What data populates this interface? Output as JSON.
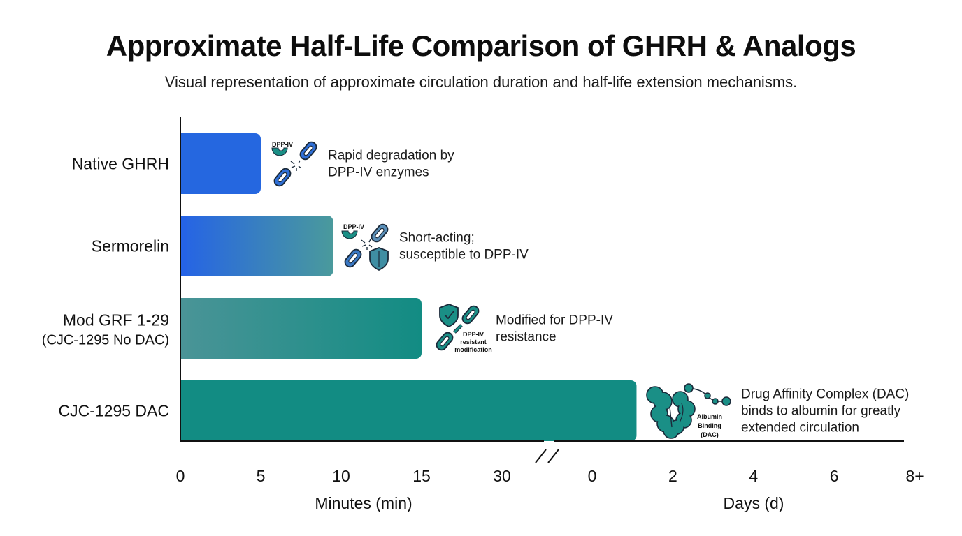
{
  "chart_data": {
    "type": "bar",
    "orientation": "horizontal",
    "title": "Approximate Half-Life Comparison of GHRH & Analogs",
    "subtitle": "Visual representation of approximate circulation duration and half-life extension mechanisms.",
    "categories": [
      {
        "label": "Native GHRH",
        "sublabel": ""
      },
      {
        "label": "Sermorelin",
        "sublabel": ""
      },
      {
        "label": "Mod GRF 1-29",
        "sublabel": "(CJC-1295 No DAC)"
      },
      {
        "label": "CJC-1295 DAC",
        "sublabel": ""
      }
    ],
    "series": [
      {
        "name": "Approximate half-life",
        "values": [
          {
            "value": 5,
            "unit": "min",
            "scale": "minutes"
          },
          {
            "value": 9.5,
            "unit": "min",
            "scale": "minutes"
          },
          {
            "value": 15,
            "unit": "min",
            "scale": "minutes"
          },
          {
            "value": 1.1,
            "unit": "d",
            "scale": "days"
          }
        ]
      }
    ],
    "bar_colors": [
      {
        "from": "#2567e0",
        "to": "#2567e0"
      },
      {
        "from": "#2563e6",
        "to": "#4a9a9c"
      },
      {
        "from": "#4a9497",
        "to": "#128c83"
      },
      {
        "from": "#128c83",
        "to": "#128c83"
      }
    ],
    "annotations": [
      {
        "icon": "broken-chain-icon",
        "icon_label": "DPP-IV",
        "lines": [
          "Rapid degradation by",
          "DPP-IV enzymes"
        ]
      },
      {
        "icon": "broken-chain-shield-icon",
        "icon_label": "DPP-IV",
        "lines": [
          "Short-acting;",
          "susceptible to DPP-IV"
        ]
      },
      {
        "icon": "shield-check-chain-icon",
        "icon_label": [
          "DPP-IV",
          "resistant",
          "modification"
        ],
        "lines": [
          "Modified for DPP-IV",
          "resistance"
        ]
      },
      {
        "icon": "albumin-binding-icon",
        "icon_label": [
          "Albumin",
          "Binding",
          "(DAC)"
        ],
        "lines": [
          "Drug Affinity Complex (DAC)",
          "binds to albumin for greatly",
          "extended circulation"
        ]
      }
    ],
    "x_axes": [
      {
        "name": "minutes",
        "xlabel": "Minutes (min)",
        "ticks": [
          "0",
          "5",
          "10",
          "15",
          "30"
        ],
        "tick_values": [
          0,
          5,
          10,
          15,
          20
        ]
      },
      {
        "name": "days",
        "xlabel": "Days (d)",
        "ticks": [
          "0",
          "2",
          "4",
          "6",
          "8+"
        ],
        "tick_values": [
          0,
          2,
          4,
          6,
          8
        ]
      }
    ],
    "axis_break": true,
    "grid": false,
    "legend": "none"
  }
}
